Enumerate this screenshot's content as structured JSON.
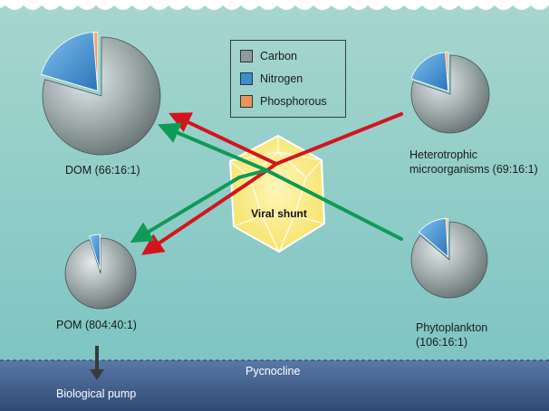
{
  "colors": {
    "sea_top": "#9fd3cb",
    "sea_bottom": "#7fc6c4",
    "deep_water": "#3f5c8a",
    "carbon": "#8f9a9b",
    "nitrogen": "#3b8ed0",
    "phosphorous": "#e8945a",
    "arrow_red": "#d4141c",
    "arrow_green": "#0f9a56",
    "shunt_fill": "#fbee8a"
  },
  "legend": {
    "items": [
      {
        "label": "Carbon",
        "color": "#8f9a9b"
      },
      {
        "label": "Nitrogen",
        "color": "#3b8ed0"
      },
      {
        "label": "Phosphorous",
        "color": "#e8945a"
      }
    ]
  },
  "pools": {
    "dom": {
      "label": "DOM (66:16:1)",
      "ratio": [
        66,
        16,
        1
      ]
    },
    "pom": {
      "label": "POM (804:40:1)",
      "ratio": [
        804,
        40,
        1
      ]
    },
    "hetero": {
      "label_line1": "Heterotrophic",
      "label_line2": "microorganisms (69:16:1)",
      "ratio": [
        69,
        16,
        1
      ]
    },
    "phyto": {
      "label_line1": "Phytoplankton",
      "label_line2": "(106:16:1)",
      "ratio": [
        106,
        16,
        1
      ]
    }
  },
  "viral_shunt": {
    "label": "Viral shunt"
  },
  "pycnocline": {
    "label": "Pycnocline"
  },
  "biological_pump": {
    "label": "Biological pump"
  },
  "icons": {
    "pie": "pie-chart-icon",
    "arrow": "arrow-icon",
    "virus": "icosahedron-virus-icon",
    "down_arrow": "arrow-down-icon"
  }
}
